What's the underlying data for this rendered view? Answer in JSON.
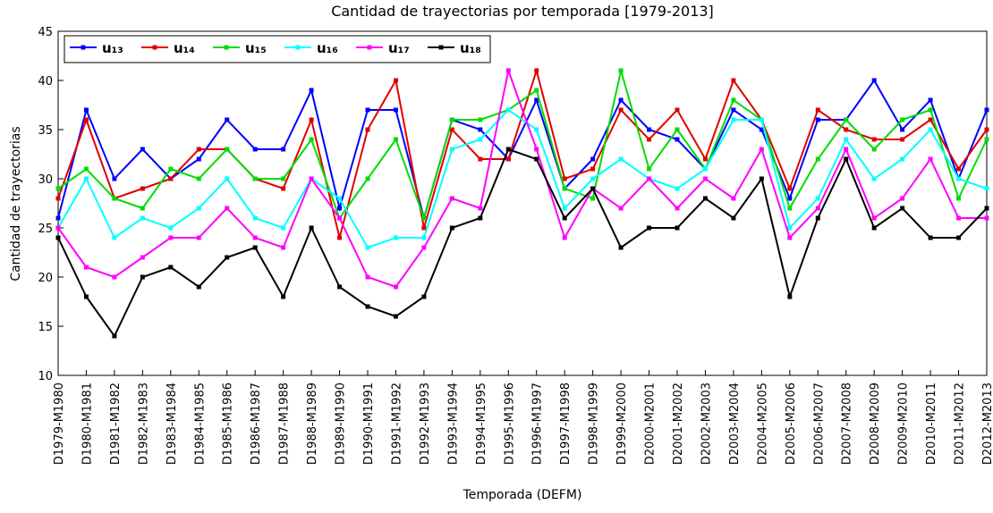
{
  "chart_data": {
    "type": "line",
    "title": "Cantidad de trayectorias por temporada [1979-2013]",
    "x_label": "Temporada (DEFM)",
    "y_label": "Cantidad de trayectorias",
    "categories": [
      "D1979-M1980",
      "D1980-M1981",
      "D1981-M1982",
      "D1982-M1983",
      "D1983-M1984",
      "D1984-M1985",
      "D1985-M1986",
      "D1986-M1987",
      "D1987-M1988",
      "D1988-M1989",
      "D1989-M1990",
      "D1990-M1991",
      "D1991-M1992",
      "D1992-M1993",
      "D1993-M1994",
      "D1994-M1995",
      "D1995-M1996",
      "D1996-M1997",
      "D1997-M1998",
      "D1998-M1999",
      "D1999-M2000",
      "D2000-M2001",
      "D2001-M2002",
      "D2002-M2003",
      "D2003-M2004",
      "D2004-M2005",
      "D2005-M2006",
      "D2006-M2007",
      "D2007-M2008",
      "D2008-M2009",
      "D2009-M2010",
      "D2010-M2011",
      "D2011-M2012",
      "D2012-M2013"
    ],
    "series": [
      {
        "name": "u₁₃",
        "color": "#0000ff",
        "values": [
          26,
          37,
          30,
          33,
          30,
          32,
          36,
          33,
          33,
          39,
          27,
          37,
          37,
          26,
          36,
          35,
          32,
          38,
          29,
          32,
          38,
          35,
          34,
          31,
          37,
          35,
          28,
          36,
          36,
          40,
          35,
          38,
          30,
          37
        ]
      },
      {
        "name": "u₁₄",
        "color": "#e00000",
        "values": [
          28,
          36,
          28,
          29,
          30,
          33,
          33,
          30,
          29,
          36,
          24,
          35,
          40,
          25,
          35,
          32,
          32,
          41,
          30,
          31,
          37,
          34,
          37,
          32,
          40,
          36,
          29,
          37,
          35,
          34,
          34,
          36,
          31,
          35
        ]
      },
      {
        "name": "u₁₅",
        "color": "#00dd00",
        "values": [
          29,
          31,
          28,
          27,
          31,
          30,
          33,
          30,
          30,
          34,
          26,
          30,
          34,
          26,
          36,
          36,
          37,
          39,
          29,
          28,
          41,
          31,
          35,
          31,
          38,
          36,
          27,
          32,
          36,
          33,
          36,
          37,
          28,
          34
        ]
      },
      {
        "name": "u₁₆",
        "color": "#00ffff",
        "values": [
          25,
          30,
          24,
          26,
          25,
          27,
          30,
          26,
          25,
          30,
          28,
          23,
          24,
          24,
          33,
          34,
          37,
          35,
          27,
          30,
          32,
          30,
          29,
          31,
          36,
          36,
          25,
          28,
          34,
          30,
          32,
          35,
          30,
          29
        ]
      },
      {
        "name": "u₁₇",
        "color": "#ff00ff",
        "values": [
          25,
          21,
          20,
          22,
          24,
          24,
          27,
          24,
          23,
          30,
          26,
          20,
          19,
          23,
          28,
          27,
          41,
          33,
          24,
          29,
          27,
          30,
          27,
          30,
          28,
          33,
          24,
          27,
          33,
          26,
          28,
          32,
          26,
          26
        ]
      },
      {
        "name": "u₁₈",
        "color": "#000000",
        "values": [
          24,
          18,
          14,
          20,
          21,
          19,
          22,
          23,
          18,
          25,
          19,
          17,
          16,
          18,
          25,
          26,
          33,
          32,
          26,
          29,
          23,
          25,
          25,
          28,
          26,
          30,
          18,
          26,
          32,
          25,
          27,
          24,
          24,
          27
        ]
      }
    ],
    "ylim": [
      10,
      45
    ],
    "yticks": [
      10,
      15,
      20,
      25,
      30,
      35,
      40,
      45
    ],
    "grid": false,
    "legend": "top-left"
  }
}
